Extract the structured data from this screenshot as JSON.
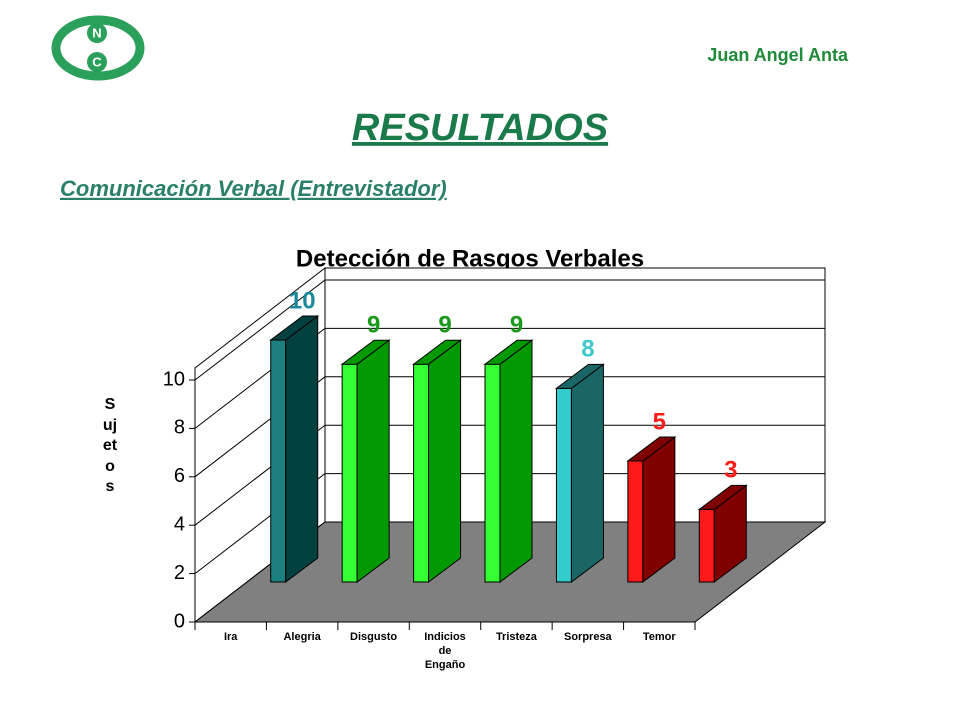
{
  "header": {
    "author": "Juan Angel Anta",
    "title": "RESULTADOS",
    "subtitle": "Comunicación Verbal (Entrevistador)",
    "logo_letters": [
      "N",
      "C"
    ]
  },
  "chart_data": {
    "type": "bar3d",
    "title": "Detección de Rasgos Verbales",
    "ylabel": "Sujetos",
    "categories": [
      "Ira",
      "Alegria",
      "Disgusto",
      "Indicios de Engaño",
      "Tristeza",
      "Sorpresa",
      "Temor"
    ],
    "values": [
      10,
      9,
      9,
      9,
      8,
      5,
      3
    ],
    "colors": [
      "#1a8080",
      "#33ff33",
      "#33ff33",
      "#33ff33",
      "#33cccc",
      "#ff1a1a",
      "#ff1a1a"
    ],
    "side_colors": [
      "#034040",
      "#009900",
      "#009900",
      "#009900",
      "#1a6666",
      "#800000",
      "#800000"
    ],
    "label_colors": [
      "#1a8a9a",
      "#1a9a1a",
      "#1a9a1a",
      "#1a9a1a",
      "#40c8c8",
      "#ff1a1a",
      "#ff1a1a"
    ],
    "ylim": [
      0,
      10
    ],
    "yticks": [
      0,
      2,
      4,
      6,
      8,
      10
    ],
    "grid": true,
    "floor_color": "#808080"
  }
}
